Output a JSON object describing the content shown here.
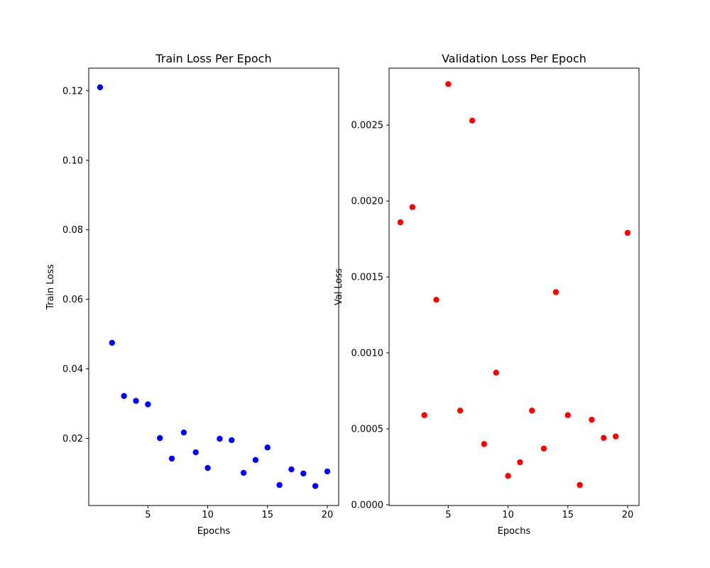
{
  "chart_data": [
    {
      "type": "scatter",
      "title": "Train Loss Per Epoch",
      "xlabel": "Epochs",
      "ylabel": "Train Loss",
      "xlim": [
        0.05,
        20.95
      ],
      "ylim": [
        0.0007,
        0.1265
      ],
      "xticks": [
        5,
        10,
        15,
        20
      ],
      "yticks": [
        0.02,
        0.04,
        0.06,
        0.08,
        0.1,
        0.12
      ],
      "ytick_labels": [
        "0.02",
        "0.04",
        "0.06",
        "0.08",
        "0.10",
        "0.12"
      ],
      "grid": false,
      "color": "#0000ff",
      "x": [
        1,
        2,
        3,
        4,
        5,
        6,
        7,
        8,
        9,
        10,
        11,
        12,
        13,
        14,
        15,
        16,
        17,
        18,
        19,
        20
      ],
      "y": [
        0.121,
        0.0475,
        0.0322,
        0.0308,
        0.0298,
        0.0201,
        0.0142,
        0.0217,
        0.016,
        0.0115,
        0.0199,
        0.0195,
        0.0101,
        0.0138,
        0.0174,
        0.0066,
        0.0111,
        0.0099,
        0.0063,
        0.0105
      ]
    },
    {
      "type": "scatter",
      "title": "Validation Loss Per Epoch",
      "xlabel": "Epochs",
      "ylabel": "Val Loss",
      "xlim": [
        0.05,
        20.95
      ],
      "ylim": [
        -5e-06,
        0.002875
      ],
      "xticks": [
        5,
        10,
        15,
        20
      ],
      "yticks": [
        0.0,
        0.0005,
        0.001,
        0.0015,
        0.002,
        0.0025
      ],
      "ytick_labels": [
        "0.0000",
        "0.0005",
        "0.0010",
        "0.0015",
        "0.0020",
        "0.0025"
      ],
      "grid": false,
      "color": "#ff0000",
      "x": [
        1,
        2,
        3,
        4,
        5,
        6,
        7,
        8,
        9,
        10,
        11,
        12,
        13,
        14,
        15,
        16,
        17,
        18,
        19,
        20
      ],
      "y": [
        0.00186,
        0.00196,
        0.00059,
        0.00135,
        0.00277,
        0.00062,
        0.00253,
        0.0004,
        0.00087,
        0.00019,
        0.00028,
        0.00062,
        0.00037,
        0.0014,
        0.00059,
        0.00013,
        0.00056,
        0.00044,
        0.00045,
        0.00179
      ]
    }
  ]
}
